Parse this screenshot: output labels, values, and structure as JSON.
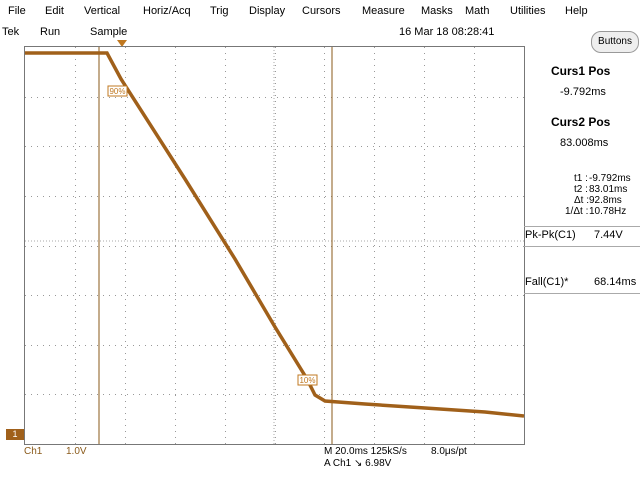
{
  "menu": [
    "File",
    "Edit",
    "Vertical",
    "Horiz/Acq",
    "Trig",
    "Display",
    "Cursors",
    "Measure",
    "Masks",
    "Math",
    "Utilities",
    "Help"
  ],
  "status": {
    "brand": "Tek",
    "run": "Run",
    "mode": "Sample",
    "datetime": "16 Mar 18 08:28:41"
  },
  "buttons_label": "Buttons",
  "cursors": {
    "curs1_heading": "Curs1 Pos",
    "curs1_value": "-9.792ms",
    "curs2_heading": "Curs2 Pos",
    "curs2_value": "83.008ms",
    "t1_label": "t1 :",
    "t1_value": "-9.792ms",
    "t2_label": "t2 :",
    "t2_value": "83.01ms",
    "dt_label": "Δt :",
    "dt_value": "92.8ms",
    "inv_dt_label": "1/Δt :",
    "inv_dt_value": "10.78Hz"
  },
  "measurements": {
    "pkpk_label": "Pk-Pk(C1)",
    "pkpk_value": "7.44V",
    "fall_label": "Fall(C1)*",
    "fall_value": "68.14ms"
  },
  "markers": {
    "level_90": "90%",
    "level_10": "10%",
    "ground": "1",
    "trigger_level_arrow": "←"
  },
  "bottom": {
    "ch1": "Ch1",
    "volts_div": "1.0V",
    "timebase": "M 20.0ms 125kS/s",
    "resolution": "8.0μs/pt",
    "trigger": "A  Ch1  ↘  6.98V"
  },
  "colors": {
    "trace": "#a0601a",
    "grid": "#999999",
    "cursor": "#8a5a1a"
  }
}
